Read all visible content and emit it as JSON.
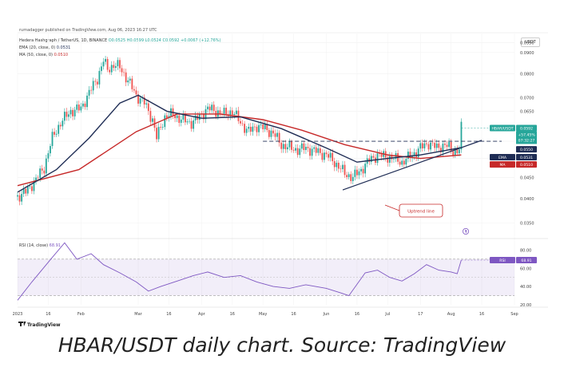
{
  "header": {
    "publish_line": "rumadagger published on TradingView.com, Aug 06, 2023 16:27 UTC",
    "symbol_line_name": "Hedera Hashgraph / TetherUS, 1D, BINANCE",
    "symbol_line_ohlc": "O0.0525 H0.0599 L0.0524 C0.0592 +0.0067 (+12.76%)",
    "ema_legend_label": "EMA (20, close, 0)",
    "ema_legend_value": "0.0531",
    "ma_legend_label": "MA (50, close, 0)",
    "ma_legend_value": "0.0510",
    "currency_badge": "USDT",
    "rsi_legend_label": "RSI (14, close)",
    "rsi_legend_value": "68.91"
  },
  "price_badges": {
    "symbol": "HBAR/USDT",
    "price": "0.0592",
    "change": "+57.45%",
    "countdown": "07:32:27",
    "level": "0.0550",
    "ema_tag": "EMA",
    "ema_value": "0.0531",
    "ma_tag": "MA",
    "ma_value": "0.0510",
    "rsi_tag": "RSI",
    "rsi_value": "68.91"
  },
  "annotation": "Uptrend line",
  "footer": {
    "logo": "TradingView"
  },
  "caption": "HBAR/USDT daily chart. Source: TradingView",
  "colors": {
    "up": "#26a69a",
    "down": "#ef5350",
    "ema": "#1f2d55",
    "ma": "#c62828",
    "rsi_line": "#7e57c2",
    "rsi_band": "rgba(126,87,194,0.10)",
    "badge_green": "#26a69a",
    "badge_navy": "#1f2d55",
    "badge_red": "#c62828",
    "badge_purple": "#7e57c2"
  },
  "chart_data": {
    "type": "candlestick",
    "price_axis": {
      "scale": "log",
      "ylim": [
        0.0325,
        0.1
      ],
      "ticks": [
        0.095,
        0.09,
        0.08,
        0.07,
        0.065,
        0.055,
        0.05,
        0.045,
        0.04,
        0.035
      ],
      "tick_labels": [
        "0.0950",
        "0.0900",
        "0.0800",
        "0.0700",
        "0.0650",
        "0.0550",
        "0.0500",
        "0.0450",
        "0.0400",
        "0.0350"
      ]
    },
    "time_axis": {
      "xlim": [
        "2023-01-01",
        "2023-09-01"
      ],
      "ticks": [
        "2023-01-01",
        "2023-01-16",
        "2023-02-01",
        "2023-03-01",
        "2023-03-16",
        "2023-04-01",
        "2023-04-16",
        "2023-05-01",
        "2023-05-16",
        "2023-06-01",
        "2023-06-16",
        "2023-07-01",
        "2023-07-17",
        "2023-08-01",
        "2023-08-16",
        "2023-09-01"
      ],
      "tick_labels": [
        "2023",
        "16",
        "Feb",
        "Mar",
        "16",
        "Apr",
        "16",
        "May",
        "16",
        "Jun",
        "16",
        "Jul",
        "17",
        "Aug",
        "16",
        "Sep"
      ]
    },
    "price_path": [
      [
        "2023-01-01",
        0.0405
      ],
      [
        "2023-01-05",
        0.0415
      ],
      [
        "2023-01-10",
        0.0445
      ],
      [
        "2023-01-14",
        0.0475
      ],
      [
        "2023-01-18",
        0.056
      ],
      [
        "2023-01-22",
        0.061
      ],
      [
        "2023-01-27",
        0.065
      ],
      [
        "2023-02-01",
        0.066
      ],
      [
        "2023-02-05",
        0.072
      ],
      [
        "2023-02-09",
        0.078
      ],
      [
        "2023-02-12",
        0.086
      ],
      [
        "2023-02-14",
        0.082
      ],
      [
        "2023-02-17",
        0.084
      ],
      [
        "2023-02-20",
        0.083
      ],
      [
        "2023-02-24",
        0.077
      ],
      [
        "2023-02-28",
        0.071
      ],
      [
        "2023-03-04",
        0.068
      ],
      [
        "2023-03-08",
        0.062
      ],
      [
        "2023-03-10",
        0.056
      ],
      [
        "2023-03-14",
        0.063
      ],
      [
        "2023-03-18",
        0.064
      ],
      [
        "2023-03-22",
        0.062
      ],
      [
        "2023-03-27",
        0.061
      ],
      [
        "2023-03-31",
        0.063
      ],
      [
        "2023-04-04",
        0.066
      ],
      [
        "2023-04-08",
        0.065
      ],
      [
        "2023-04-12",
        0.064
      ],
      [
        "2023-04-16",
        0.065
      ],
      [
        "2023-04-20",
        0.061
      ],
      [
        "2023-04-24",
        0.058
      ],
      [
        "2023-04-28",
        0.06
      ],
      [
        "2023-05-02",
        0.059
      ],
      [
        "2023-05-06",
        0.0575
      ],
      [
        "2023-05-10",
        0.054
      ],
      [
        "2023-05-14",
        0.053
      ],
      [
        "2023-05-18",
        0.0525
      ],
      [
        "2023-05-22",
        0.053
      ],
      [
        "2023-05-27",
        0.052
      ],
      [
        "2023-06-01",
        0.051
      ],
      [
        "2023-06-05",
        0.049
      ],
      [
        "2023-06-10",
        0.046
      ],
      [
        "2023-06-14",
        0.045
      ],
      [
        "2023-06-18",
        0.047
      ],
      [
        "2023-06-22",
        0.0495
      ],
      [
        "2023-06-26",
        0.051
      ],
      [
        "2023-06-30",
        0.0505
      ],
      [
        "2023-07-04",
        0.05
      ],
      [
        "2023-07-08",
        0.049
      ],
      [
        "2023-07-13",
        0.051
      ],
      [
        "2023-07-17",
        0.053
      ],
      [
        "2023-07-21",
        0.0545
      ],
      [
        "2023-07-25",
        0.053
      ],
      [
        "2023-07-29",
        0.054
      ],
      [
        "2023-08-02",
        0.052
      ],
      [
        "2023-08-05",
        0.0525
      ],
      [
        "2023-08-06",
        0.0592
      ]
    ],
    "horizontal_level": 0.055,
    "uptrend_line": {
      "from": [
        "2023-06-09",
        0.042
      ],
      "to": [
        "2023-08-16",
        0.0553
      ]
    },
    "ema20_path": [
      [
        "2023-01-01",
        0.0415
      ],
      [
        "2023-01-20",
        0.047
      ],
      [
        "2023-02-05",
        0.056
      ],
      [
        "2023-02-20",
        0.068
      ],
      [
        "2023-03-01",
        0.071
      ],
      [
        "2023-03-15",
        0.065
      ],
      [
        "2023-04-01",
        0.0625
      ],
      [
        "2023-04-20",
        0.063
      ],
      [
        "2023-05-10",
        0.059
      ],
      [
        "2023-06-01",
        0.053
      ],
      [
        "2023-06-16",
        0.049
      ],
      [
        "2023-07-01",
        0.05
      ],
      [
        "2023-07-17",
        0.051
      ],
      [
        "2023-08-06",
        0.0531
      ]
    ],
    "ma50_path": [
      [
        "2023-01-01",
        0.043
      ],
      [
        "2023-01-31",
        0.047
      ],
      [
        "2023-02-28",
        0.058
      ],
      [
        "2023-03-20",
        0.064
      ],
      [
        "2023-04-10",
        0.064
      ],
      [
        "2023-05-01",
        0.062
      ],
      [
        "2023-05-20",
        0.0585
      ],
      [
        "2023-06-10",
        0.054
      ],
      [
        "2023-07-01",
        0.051
      ],
      [
        "2023-07-17",
        0.05
      ],
      [
        "2023-08-06",
        0.051
      ]
    ],
    "rsi": {
      "ylim": [
        20,
        90
      ],
      "ticks": [
        80,
        60,
        40,
        20
      ],
      "tick_labels": [
        "80.00",
        "60.00",
        "40.00",
        "20.00"
      ],
      "band": [
        30,
        70
      ],
      "midline": 50,
      "path": [
        [
          "2023-01-01",
          25
        ],
        [
          "2023-01-08",
          45
        ],
        [
          "2023-01-18",
          72
        ],
        [
          "2023-01-24",
          88
        ],
        [
          "2023-01-30",
          70
        ],
        [
          "2023-02-06",
          76
        ],
        [
          "2023-02-12",
          64
        ],
        [
          "2023-02-20",
          55
        ],
        [
          "2023-02-28",
          45
        ],
        [
          "2023-03-06",
          35
        ],
        [
          "2023-03-12",
          40
        ],
        [
          "2023-03-20",
          46
        ],
        [
          "2023-03-28",
          52
        ],
        [
          "2023-04-04",
          56
        ],
        [
          "2023-04-12",
          50
        ],
        [
          "2023-04-20",
          52
        ],
        [
          "2023-04-28",
          45
        ],
        [
          "2023-05-06",
          40
        ],
        [
          "2023-05-14",
          38
        ],
        [
          "2023-05-22",
          42
        ],
        [
          "2023-06-01",
          38
        ],
        [
          "2023-06-08",
          33
        ],
        [
          "2023-06-12",
          30
        ],
        [
          "2023-06-20",
          55
        ],
        [
          "2023-06-26",
          58
        ],
        [
          "2023-07-02",
          50
        ],
        [
          "2023-07-08",
          46
        ],
        [
          "2023-07-14",
          54
        ],
        [
          "2023-07-20",
          64
        ],
        [
          "2023-07-26",
          58
        ],
        [
          "2023-08-01",
          56
        ],
        [
          "2023-08-04",
          54
        ],
        [
          "2023-08-06",
          69
        ]
      ]
    }
  }
}
